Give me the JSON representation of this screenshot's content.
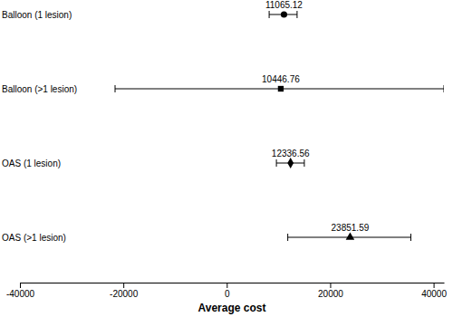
{
  "chart_data": {
    "type": "scatter",
    "orientation": "horizontal",
    "xlabel": "Average cost",
    "categories": [
      "Balloon (1 lesion)",
      "Balloon (>1 lesion)",
      "OAS (1 lesion)",
      "OAS (>1 lesion)"
    ],
    "xlim": [
      -40000,
      42000
    ],
    "xticks": [
      -40000,
      -20000,
      0,
      20000,
      40000
    ],
    "tick_labels": "x",
    "data_labels": true,
    "color": "#000000",
    "series": [
      {
        "marker": "circle",
        "values": [
          11065.12,
          null,
          null,
          null
        ],
        "lower": [
          8200,
          null,
          null,
          null
        ],
        "upper": [
          13600,
          null,
          null,
          null
        ]
      },
      {
        "marker": "square",
        "values": [
          null,
          10446.76,
          null,
          null
        ],
        "lower": [
          null,
          -21600,
          null,
          null
        ],
        "upper": [
          null,
          42000,
          null,
          null
        ]
      },
      {
        "marker": "diamond",
        "values": [
          null,
          null,
          12336.56,
          null
        ],
        "lower": [
          null,
          null,
          9600,
          null
        ],
        "upper": [
          null,
          null,
          15000,
          null
        ]
      },
      {
        "marker": "triangle",
        "values": [
          null,
          null,
          null,
          23851.59
        ],
        "lower": [
          null,
          null,
          null,
          11800
        ],
        "upper": [
          null,
          null,
          null,
          35600
        ]
      }
    ]
  }
}
